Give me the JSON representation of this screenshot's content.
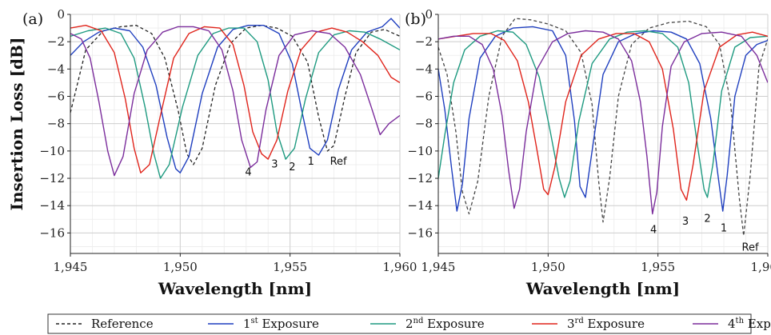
{
  "chart_data": [
    {
      "type": "line",
      "panel_label": "(a)",
      "xlabel": "Wavelength [nm]",
      "ylabel": "Insertion Loss [dB]",
      "xlim": [
        1945,
        1960
      ],
      "ylim": [
        -17.5,
        0
      ],
      "x_ticks": [
        1945,
        1950,
        1955,
        1960
      ],
      "x_tick_labels": [
        "1,945",
        "1,950",
        "1,955",
        "1,960"
      ],
      "y_ticks": [
        0,
        -2,
        -4,
        -6,
        -8,
        -10,
        -12,
        -14,
        -16
      ],
      "y_tick_labels": [
        "0",
        "−2",
        "−4",
        "−6",
        "−8",
        "−10",
        "−12",
        "−14",
        "−16"
      ],
      "grid": true,
      "series": [
        {
          "name": "Reference",
          "color": "#222222",
          "dash": true,
          "x": [
            1945.0,
            1945.7,
            1946.5,
            1947.3,
            1948.0,
            1948.7,
            1949.3,
            1949.9,
            1950.3,
            1950.6,
            1951.0,
            1951.6,
            1952.3,
            1953.0,
            1953.7,
            1954.4,
            1955.1,
            1955.8,
            1956.3,
            1956.7,
            1957.0,
            1957.5,
            1958.0,
            1958.7,
            1959.3,
            1960.0
          ],
          "y": [
            -7.2,
            -2.6,
            -1.2,
            -0.9,
            -0.8,
            -1.4,
            -3.2,
            -7.0,
            -10.2,
            -11.0,
            -9.8,
            -5.2,
            -2.1,
            -1.0,
            -0.8,
            -1.0,
            -1.6,
            -3.5,
            -7.5,
            -10.0,
            -9.6,
            -6.0,
            -2.8,
            -1.3,
            -1.1,
            -1.6
          ]
        },
        {
          "name": "1st Exposure",
          "color": "#1f3fbf",
          "x": [
            1945.0,
            1945.6,
            1946.3,
            1947.0,
            1947.7,
            1948.3,
            1948.9,
            1949.4,
            1949.8,
            1950.0,
            1950.4,
            1951.0,
            1951.7,
            1952.4,
            1953.1,
            1953.8,
            1954.5,
            1955.1,
            1955.5,
            1955.9,
            1956.3,
            1956.7,
            1957.2,
            1957.8,
            1958.5,
            1959.2,
            1959.6,
            1960.0
          ],
          "y": [
            -3.0,
            -2.0,
            -1.3,
            -1.0,
            -1.2,
            -2.4,
            -5.2,
            -9.0,
            -11.3,
            -11.6,
            -10.4,
            -5.8,
            -2.4,
            -1.1,
            -0.8,
            -0.8,
            -1.4,
            -3.6,
            -6.8,
            -9.8,
            -10.3,
            -9.2,
            -5.5,
            -2.6,
            -1.3,
            -0.9,
            -0.3,
            -1.0
          ]
        },
        {
          "name": "2nd Exposure",
          "color": "#1e9a80",
          "x": [
            1945.0,
            1945.8,
            1946.6,
            1947.3,
            1947.9,
            1948.4,
            1948.8,
            1949.1,
            1949.5,
            1950.1,
            1950.8,
            1951.5,
            1952.2,
            1952.9,
            1953.5,
            1954.0,
            1954.4,
            1954.8,
            1955.2,
            1955.7,
            1956.3,
            1957.0,
            1957.7,
            1958.4,
            1959.1,
            1960.0
          ],
          "y": [
            -1.6,
            -1.2,
            -1.0,
            -1.4,
            -3.2,
            -6.8,
            -10.2,
            -12.0,
            -11.0,
            -6.8,
            -3.0,
            -1.4,
            -1.0,
            -1.0,
            -2.0,
            -4.8,
            -8.6,
            -10.6,
            -9.8,
            -6.2,
            -2.8,
            -1.5,
            -1.2,
            -1.3,
            -1.8,
            -2.6
          ]
        },
        {
          "name": "3rd Exposure",
          "color": "#e0241b",
          "x": [
            1945.0,
            1945.7,
            1946.4,
            1947.0,
            1947.5,
            1947.9,
            1948.2,
            1948.6,
            1949.1,
            1949.7,
            1950.4,
            1951.1,
            1951.8,
            1952.4,
            1952.9,
            1953.3,
            1953.7,
            1954.0,
            1954.4,
            1954.9,
            1955.5,
            1956.2,
            1956.9,
            1957.6,
            1958.3,
            1959.0,
            1959.6,
            1960.0
          ],
          "y": [
            -1.0,
            -0.8,
            -1.2,
            -2.8,
            -6.2,
            -9.8,
            -11.6,
            -11.0,
            -7.4,
            -3.2,
            -1.4,
            -0.9,
            -1.0,
            -2.2,
            -5.2,
            -8.6,
            -10.2,
            -10.6,
            -9.2,
            -5.6,
            -2.6,
            -1.3,
            -1.0,
            -1.3,
            -2.0,
            -3.0,
            -4.6,
            -5.0
          ]
        },
        {
          "name": "4th Exposure",
          "color": "#7b2d9c",
          "x": [
            1945.0,
            1945.5,
            1945.9,
            1946.3,
            1946.7,
            1947.0,
            1947.4,
            1947.9,
            1948.5,
            1949.2,
            1949.9,
            1950.6,
            1951.3,
            1951.9,
            1952.4,
            1952.8,
            1953.2,
            1953.5,
            1953.9,
            1954.5,
            1955.2,
            1956.0,
            1956.8,
            1957.5,
            1958.2,
            1958.7,
            1959.1,
            1959.5,
            1960.0
          ],
          "y": [
            -1.4,
            -1.8,
            -3.2,
            -6.4,
            -10.0,
            -11.8,
            -10.4,
            -5.8,
            -2.6,
            -1.3,
            -0.9,
            -0.9,
            -1.2,
            -2.6,
            -5.6,
            -9.2,
            -11.2,
            -10.8,
            -7.0,
            -3.0,
            -1.5,
            -1.2,
            -1.4,
            -2.4,
            -4.4,
            -6.8,
            -8.8,
            -8.0,
            -7.4
          ]
        }
      ],
      "annotations": [
        {
          "text": "4",
          "x": 1953.1,
          "y": -11.8
        },
        {
          "text": "3",
          "x": 1954.3,
          "y": -11.2
        },
        {
          "text": "2",
          "x": 1955.1,
          "y": -11.4
        },
        {
          "text": "1",
          "x": 1955.95,
          "y": -11.0
        },
        {
          "text": "Ref",
          "x": 1957.2,
          "y": -11.0
        }
      ]
    },
    {
      "type": "line",
      "panel_label": "(b)",
      "xlabel": "Wavelength [nm]",
      "ylabel": "",
      "xlim": [
        1945,
        1960
      ],
      "ylim": [
        -17.5,
        0
      ],
      "x_ticks": [
        1945,
        1950,
        1955,
        1960
      ],
      "x_tick_labels": [
        "1,945",
        "1,950",
        "1,955",
        "1,960"
      ],
      "y_ticks": [
        0,
        -2,
        -4,
        -6,
        -8,
        -10,
        -12,
        -14,
        -16
      ],
      "y_tick_labels": [
        "0",
        "−2",
        "−4",
        "−6",
        "−8",
        "−10",
        "−12",
        "−14",
        "−16"
      ],
      "grid": true,
      "series": [
        {
          "name": "Reference",
          "color": "#444444",
          "dash": true,
          "x": [
            1945.0,
            1945.4,
            1945.8,
            1946.1,
            1946.4,
            1946.8,
            1947.3,
            1947.9,
            1948.5,
            1949.2,
            1950.0,
            1950.8,
            1951.5,
            1952.0,
            1952.3,
            1952.5,
            1952.8,
            1953.2,
            1953.8,
            1954.6,
            1955.5,
            1956.4,
            1957.2,
            1957.8,
            1958.3,
            1958.7,
            1958.9,
            1959.2,
            1959.6,
            1960.0
          ],
          "y": [
            -2.4,
            -4.4,
            -8.6,
            -13.0,
            -14.6,
            -12.2,
            -6.0,
            -1.6,
            -0.3,
            -0.4,
            -0.7,
            -1.2,
            -2.8,
            -6.6,
            -12.2,
            -15.2,
            -12.0,
            -6.0,
            -2.2,
            -1.0,
            -0.6,
            -0.5,
            -0.9,
            -2.2,
            -6.4,
            -13.4,
            -16.2,
            -11.8,
            -3.8,
            -1.8
          ]
        },
        {
          "name": "1st Exposure",
          "color": "#1f3fbf",
          "x": [
            1945.0,
            1945.3,
            1945.6,
            1945.85,
            1946.1,
            1946.4,
            1946.9,
            1947.6,
            1948.4,
            1949.3,
            1950.2,
            1950.8,
            1951.2,
            1951.45,
            1951.7,
            1952.0,
            1952.5,
            1953.2,
            1954.0,
            1954.8,
            1955.6,
            1956.3,
            1956.9,
            1957.4,
            1957.75,
            1957.95,
            1958.15,
            1958.5,
            1959.0,
            1959.5,
            1960.0
          ],
          "y": [
            -4.0,
            -7.0,
            -11.2,
            -14.4,
            -12.4,
            -7.6,
            -3.2,
            -1.6,
            -1.0,
            -0.9,
            -1.2,
            -3.0,
            -7.8,
            -12.6,
            -13.4,
            -10.0,
            -4.4,
            -2.0,
            -1.4,
            -1.2,
            -1.3,
            -1.8,
            -3.6,
            -7.6,
            -12.0,
            -14.4,
            -11.8,
            -6.0,
            -3.0,
            -2.2,
            -1.9
          ]
        },
        {
          "name": "2nd Exposure",
          "color": "#1e9a80",
          "x": [
            1945.0,
            1945.3,
            1945.7,
            1946.2,
            1946.9,
            1947.7,
            1948.4,
            1949.0,
            1949.6,
            1950.1,
            1950.5,
            1950.75,
            1951.0,
            1951.4,
            1952.0,
            1952.8,
            1953.6,
            1954.4,
            1955.2,
            1955.9,
            1956.4,
            1956.8,
            1957.1,
            1957.25,
            1957.5,
            1957.9,
            1958.5,
            1959.2,
            1960.0
          ],
          "y": [
            -12.0,
            -8.8,
            -5.0,
            -2.6,
            -1.6,
            -1.2,
            -1.3,
            -2.2,
            -4.6,
            -8.6,
            -12.0,
            -13.4,
            -12.2,
            -7.8,
            -3.6,
            -1.8,
            -1.3,
            -1.2,
            -1.4,
            -2.4,
            -5.0,
            -9.6,
            -12.8,
            -13.4,
            -11.0,
            -5.6,
            -2.4,
            -1.7,
            -1.6
          ]
        },
        {
          "name": "3rd Exposure",
          "color": "#e0241b",
          "x": [
            1945.0,
            1945.8,
            1946.6,
            1947.4,
            1948.0,
            1948.6,
            1949.1,
            1949.5,
            1949.8,
            1950.0,
            1950.3,
            1950.8,
            1951.5,
            1952.3,
            1953.1,
            1953.9,
            1954.6,
            1955.2,
            1955.7,
            1956.05,
            1956.3,
            1956.6,
            1957.1,
            1957.8,
            1958.6,
            1959.3,
            1960.0
          ],
          "y": [
            -1.8,
            -1.6,
            -1.4,
            -1.4,
            -1.9,
            -3.4,
            -6.4,
            -10.0,
            -12.8,
            -13.2,
            -11.2,
            -6.4,
            -3.0,
            -1.8,
            -1.4,
            -1.4,
            -2.0,
            -4.0,
            -8.4,
            -12.8,
            -13.6,
            -11.0,
            -5.6,
            -2.4,
            -1.5,
            -1.3,
            -1.6
          ]
        },
        {
          "name": "4th Exposure",
          "color": "#7b2d9c",
          "x": [
            1945.0,
            1945.7,
            1946.4,
            1947.0,
            1947.5,
            1947.9,
            1948.2,
            1948.45,
            1948.7,
            1949.0,
            1949.5,
            1950.2,
            1950.9,
            1951.7,
            1952.5,
            1953.2,
            1953.8,
            1954.2,
            1954.5,
            1954.75,
            1954.95,
            1955.2,
            1955.6,
            1956.2,
            1957.0,
            1957.9,
            1958.8,
            1959.5,
            1960.0
          ],
          "y": [
            -1.8,
            -1.6,
            -1.6,
            -2.2,
            -4.0,
            -7.4,
            -11.4,
            -14.2,
            -12.8,
            -8.6,
            -4.0,
            -2.0,
            -1.4,
            -1.2,
            -1.3,
            -1.8,
            -3.4,
            -6.4,
            -10.4,
            -14.6,
            -13.0,
            -8.2,
            -3.8,
            -2.0,
            -1.4,
            -1.3,
            -1.6,
            -3.0,
            -5.0
          ]
        }
      ],
      "annotations": [
        {
          "text": "4",
          "x": 1954.8,
          "y": -16.0
        },
        {
          "text": "3",
          "x": 1956.25,
          "y": -15.4
        },
        {
          "text": "2",
          "x": 1957.25,
          "y": -15.2
        },
        {
          "text": "1",
          "x": 1958.0,
          "y": -15.9
        },
        {
          "text": "Ref",
          "x": 1959.2,
          "y": -17.3
        }
      ]
    }
  ],
  "legend": {
    "items": [
      {
        "label": "Reference",
        "sup": "",
        "suffix": "",
        "color": "#222222",
        "dash": true
      },
      {
        "label": "1",
        "sup": "st",
        "suffix": " Exposure",
        "color": "#1f3fbf",
        "dash": false
      },
      {
        "label": "2",
        "sup": "nd",
        "suffix": " Exposure",
        "color": "#1e9a80",
        "dash": false
      },
      {
        "label": "3",
        "sup": "rd",
        "suffix": " Exposure",
        "color": "#e0241b",
        "dash": false
      },
      {
        "label": "4",
        "sup": "th",
        "suffix": " Exposure",
        "color": "#7b2d9c",
        "dash": false
      }
    ]
  }
}
